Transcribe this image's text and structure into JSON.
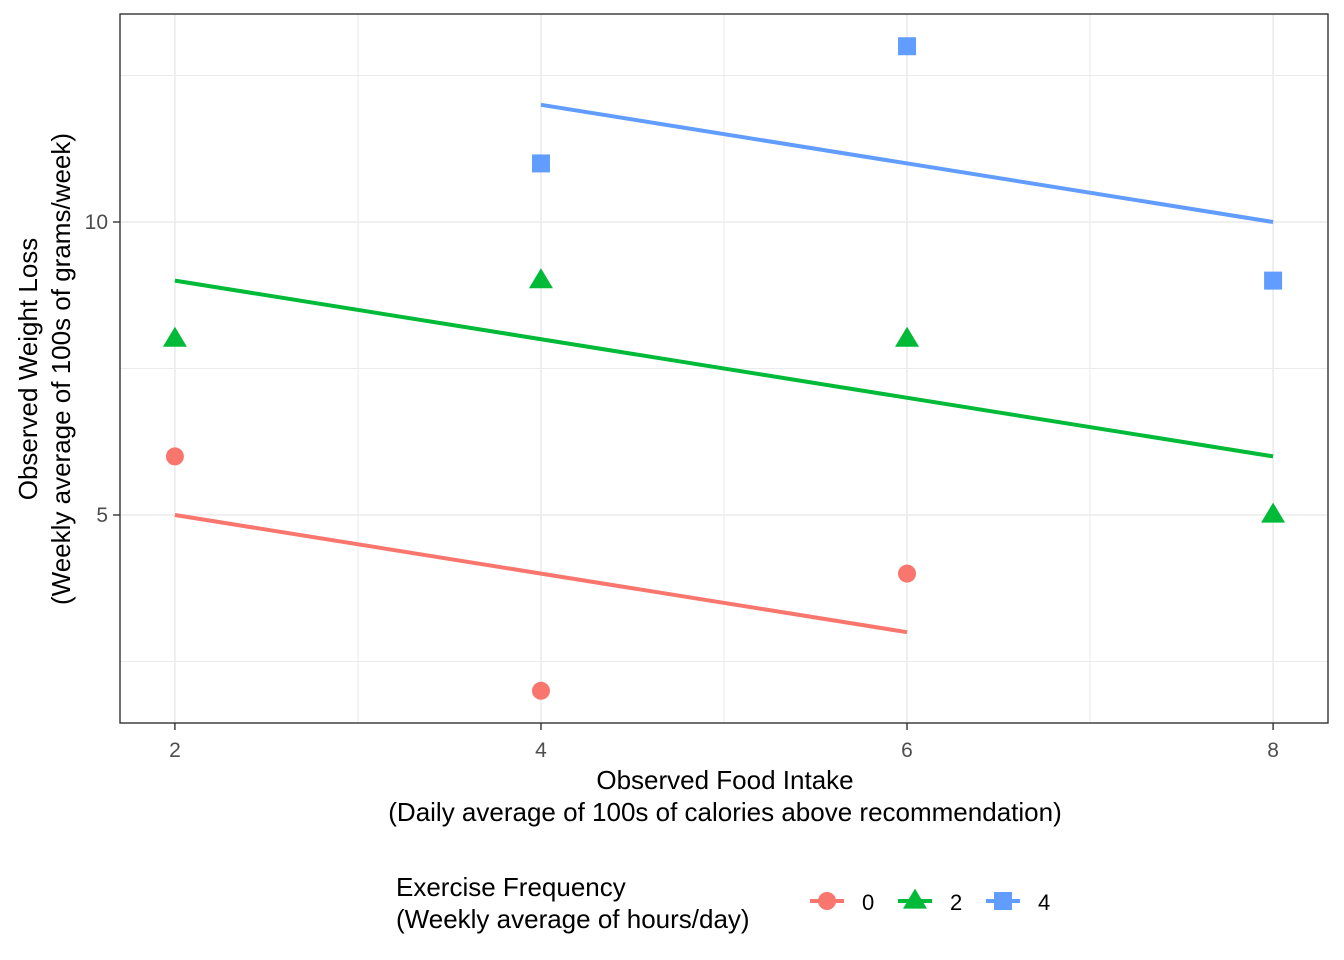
{
  "chart_data": {
    "type": "scatter",
    "xlabel": [
      "Observed Food Intake",
      "(Daily average of 100s of calories above recommendation)"
    ],
    "ylabel": [
      "Observed Weight Loss",
      "(Weekly average of 100s of grams/week)"
    ],
    "xlim": [
      1.7,
      8.3
    ],
    "ylim": [
      1.45,
      13.55
    ],
    "x_ticks": [
      2,
      4,
      6,
      8
    ],
    "y_ticks": [
      5,
      10
    ],
    "x_minor": [
      3,
      5,
      7
    ],
    "y_minor": [
      2.5,
      7.5,
      12.5
    ],
    "grid": true,
    "legend_position": "bottom",
    "legend_title": [
      "Exercise Frequency",
      "(Weekly average of hours/day)"
    ],
    "series": [
      {
        "name": "0",
        "color": "#F8766D",
        "shape": "circle",
        "points": [
          [
            2,
            6
          ],
          [
            4,
            2
          ],
          [
            6,
            4
          ]
        ],
        "fit_line": [
          [
            2,
            5
          ],
          [
            6,
            3
          ]
        ]
      },
      {
        "name": "2",
        "color": "#00BA38",
        "shape": "triangle",
        "points": [
          [
            2,
            8
          ],
          [
            4,
            9
          ],
          [
            6,
            8
          ],
          [
            8,
            5
          ]
        ],
        "fit_line": [
          [
            2,
            9
          ],
          [
            8,
            6
          ]
        ]
      },
      {
        "name": "4",
        "color": "#619CFF",
        "shape": "square",
        "points": [
          [
            4,
            11
          ],
          [
            6,
            13
          ],
          [
            8,
            9
          ]
        ],
        "fit_line": [
          [
            4,
            12
          ],
          [
            8,
            10
          ]
        ]
      }
    ]
  }
}
